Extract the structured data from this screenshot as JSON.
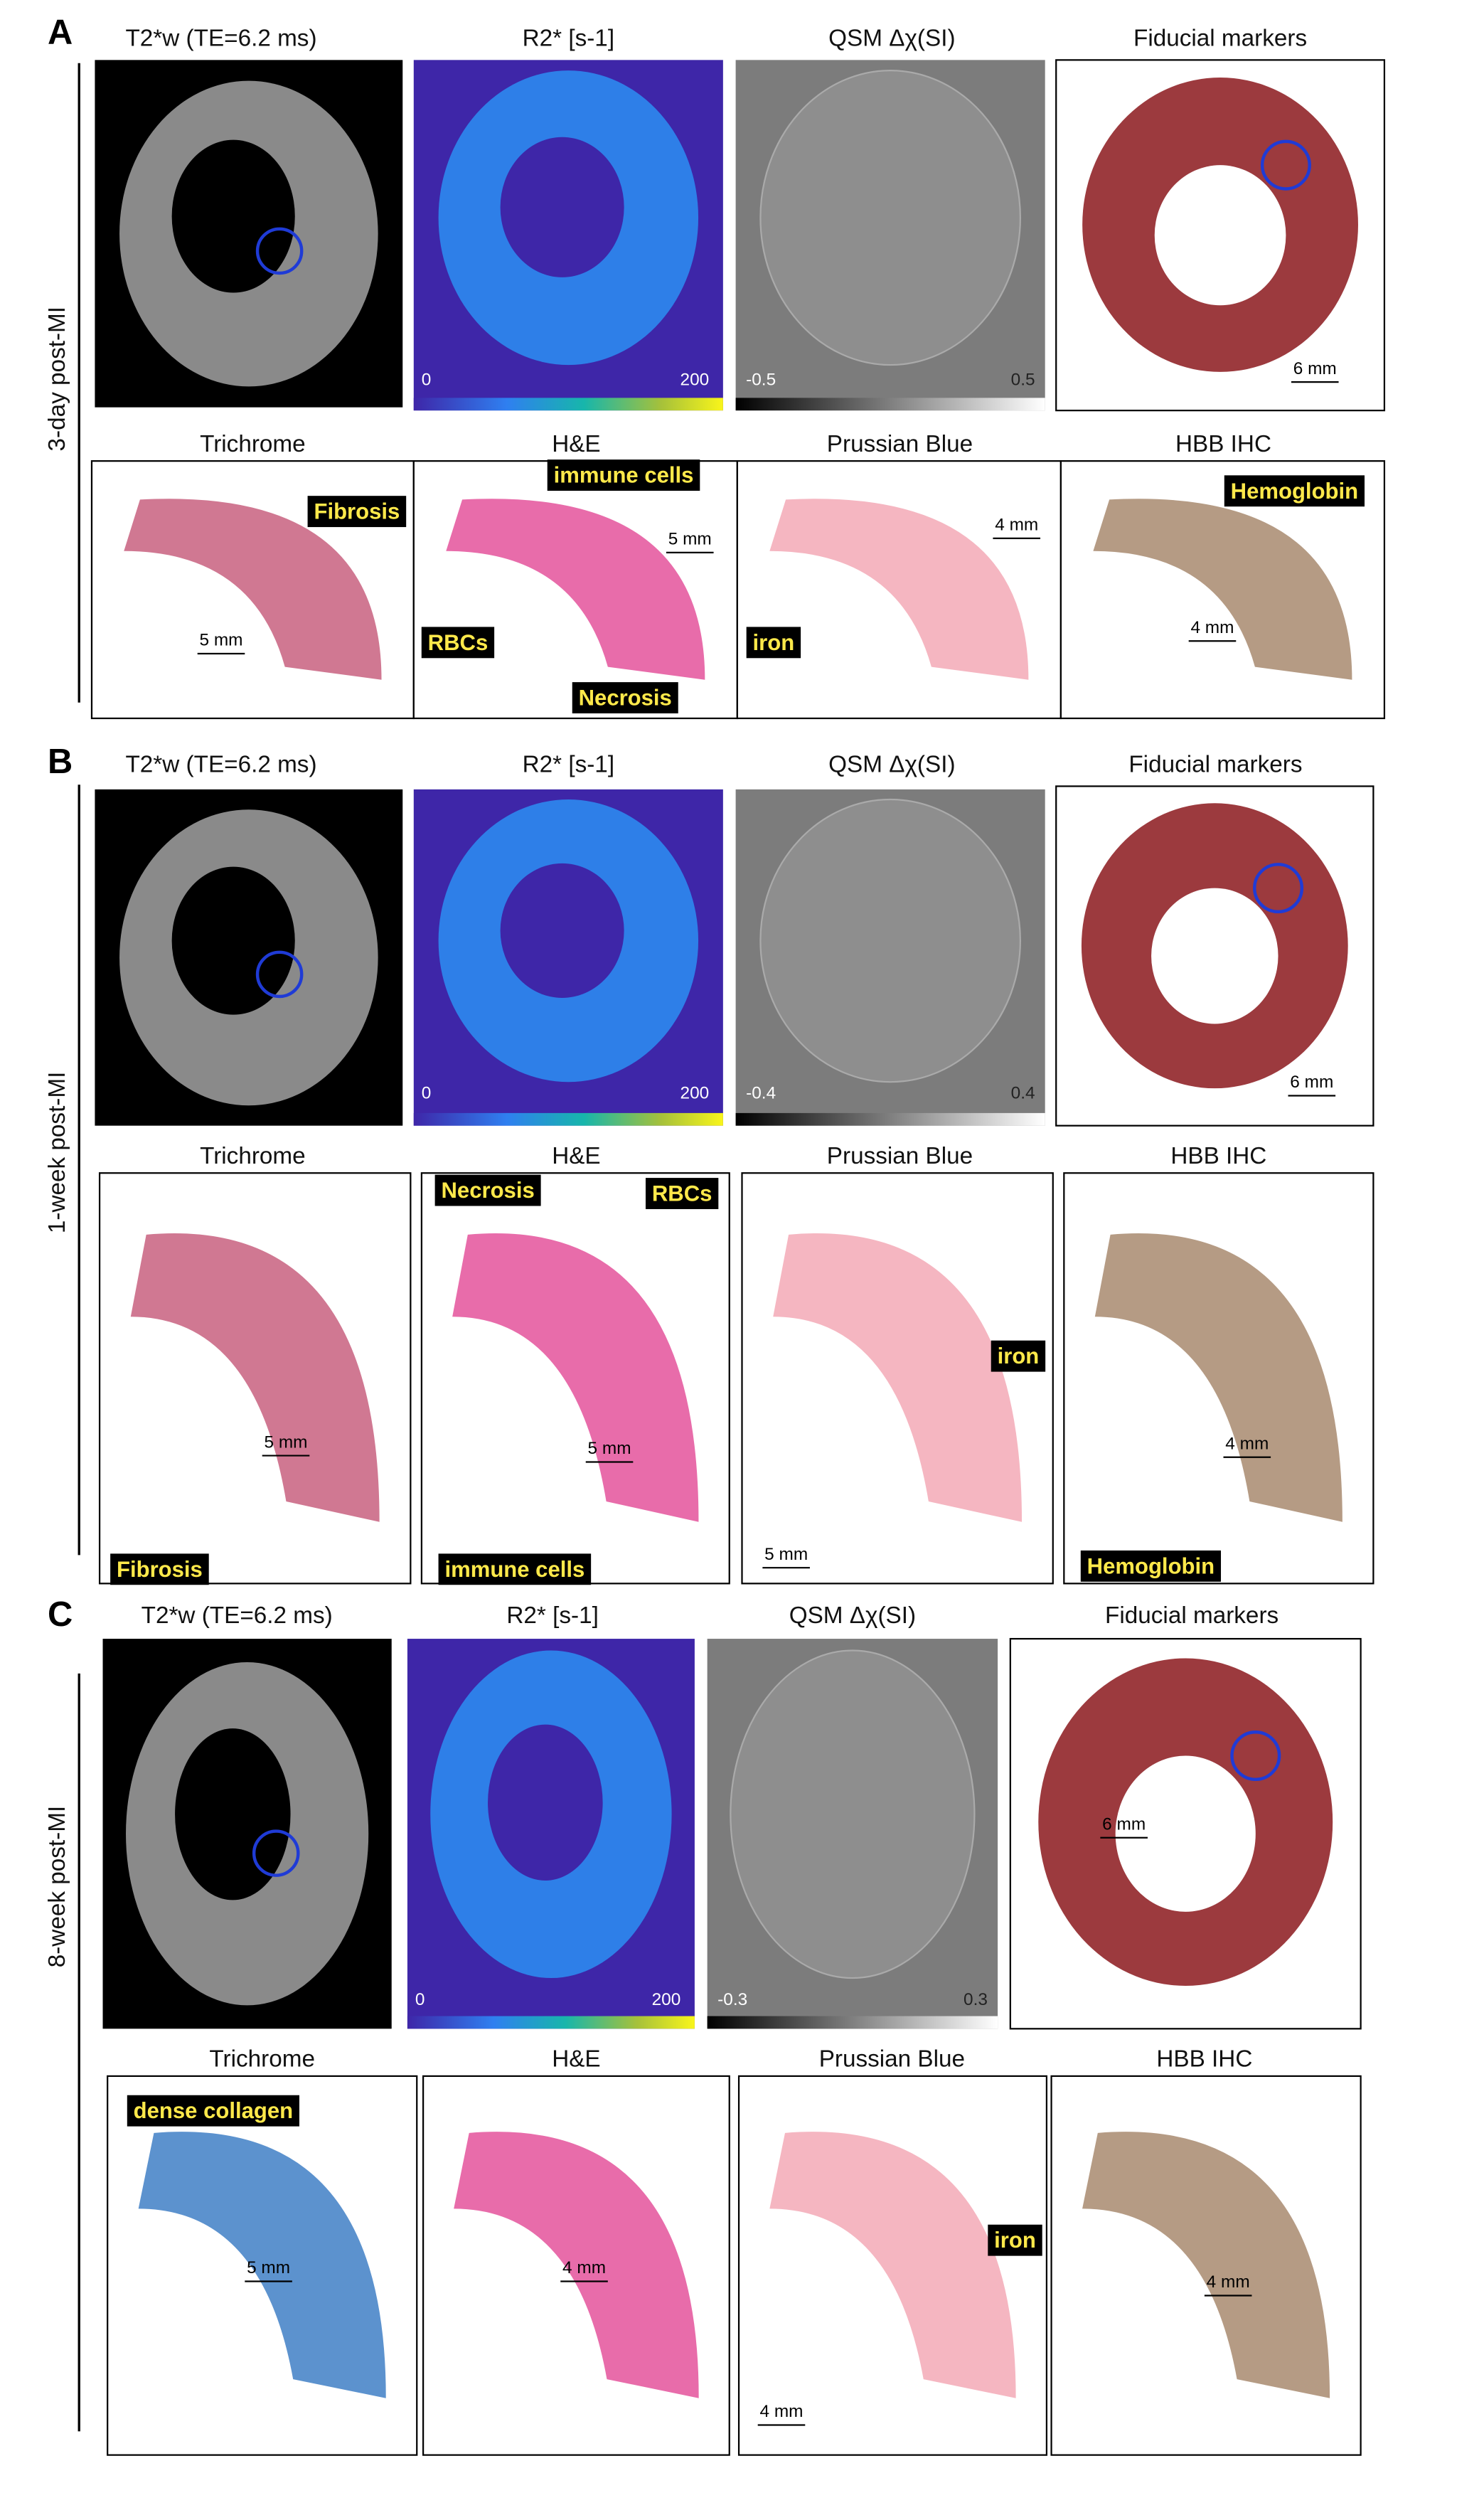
{
  "panels": [
    {
      "letter": "A",
      "row_label": "3-day post-MI",
      "mri_titles": [
        "T2*w (TE=6.2 ms)",
        "R2* [s-1]",
        "QSM Δχ(SI)",
        "Fiducial markers"
      ],
      "r2_colorbar": [
        "0",
        "200"
      ],
      "qsm_colorbar": [
        "-0.5",
        "0.5"
      ],
      "fiducial_scale": "6 mm",
      "histology_titles": [
        "Trichrome",
        "H&E",
        "Prussian Blue",
        "HBB IHC"
      ],
      "annotations": [
        "Fibrosis",
        "immune cells",
        "RBCs",
        "Necrosis",
        "iron",
        "Hemoglobin"
      ],
      "scale_bars": [
        "5 mm",
        "5 mm",
        "4 mm",
        "4 mm"
      ]
    },
    {
      "letter": "B",
      "row_label": "1-week post-MI",
      "mri_titles": [
        "T2*w (TE=6.2 ms)",
        "R2* [s-1]",
        "QSM Δχ(SI)",
        "Fiducial markers"
      ],
      "r2_colorbar": [
        "0",
        "200"
      ],
      "qsm_colorbar": [
        "-0.4",
        "0.4"
      ],
      "fiducial_scale": "6 mm",
      "histology_titles": [
        "Trichrome",
        "H&E",
        "Prussian Blue",
        "HBB IHC"
      ],
      "annotations": [
        "Necrosis",
        "RBCs",
        "iron",
        "Fibrosis",
        "immune cells",
        "Hemoglobin"
      ],
      "scale_bars": [
        "5 mm",
        "5 mm",
        "5 mm",
        "4 mm"
      ]
    },
    {
      "letter": "C",
      "row_label": "8-week post-MI",
      "mri_titles": [
        "T2*w (TE=6.2 ms)",
        "R2* [s-1]",
        "QSM Δχ(SI)",
        "Fiducial markers"
      ],
      "r2_colorbar": [
        "0",
        "200"
      ],
      "qsm_colorbar": [
        "-0.3",
        "0.3"
      ],
      "fiducial_scale": "6 mm",
      "histology_titles": [
        "Trichrome",
        "H&E",
        "Prussian Blue",
        "HBB IHC"
      ],
      "annotations": [
        "dense collagen",
        "iron"
      ],
      "scale_bars": [
        "5 mm",
        "4 mm",
        "4 mm",
        "4 mm"
      ]
    }
  ]
}
